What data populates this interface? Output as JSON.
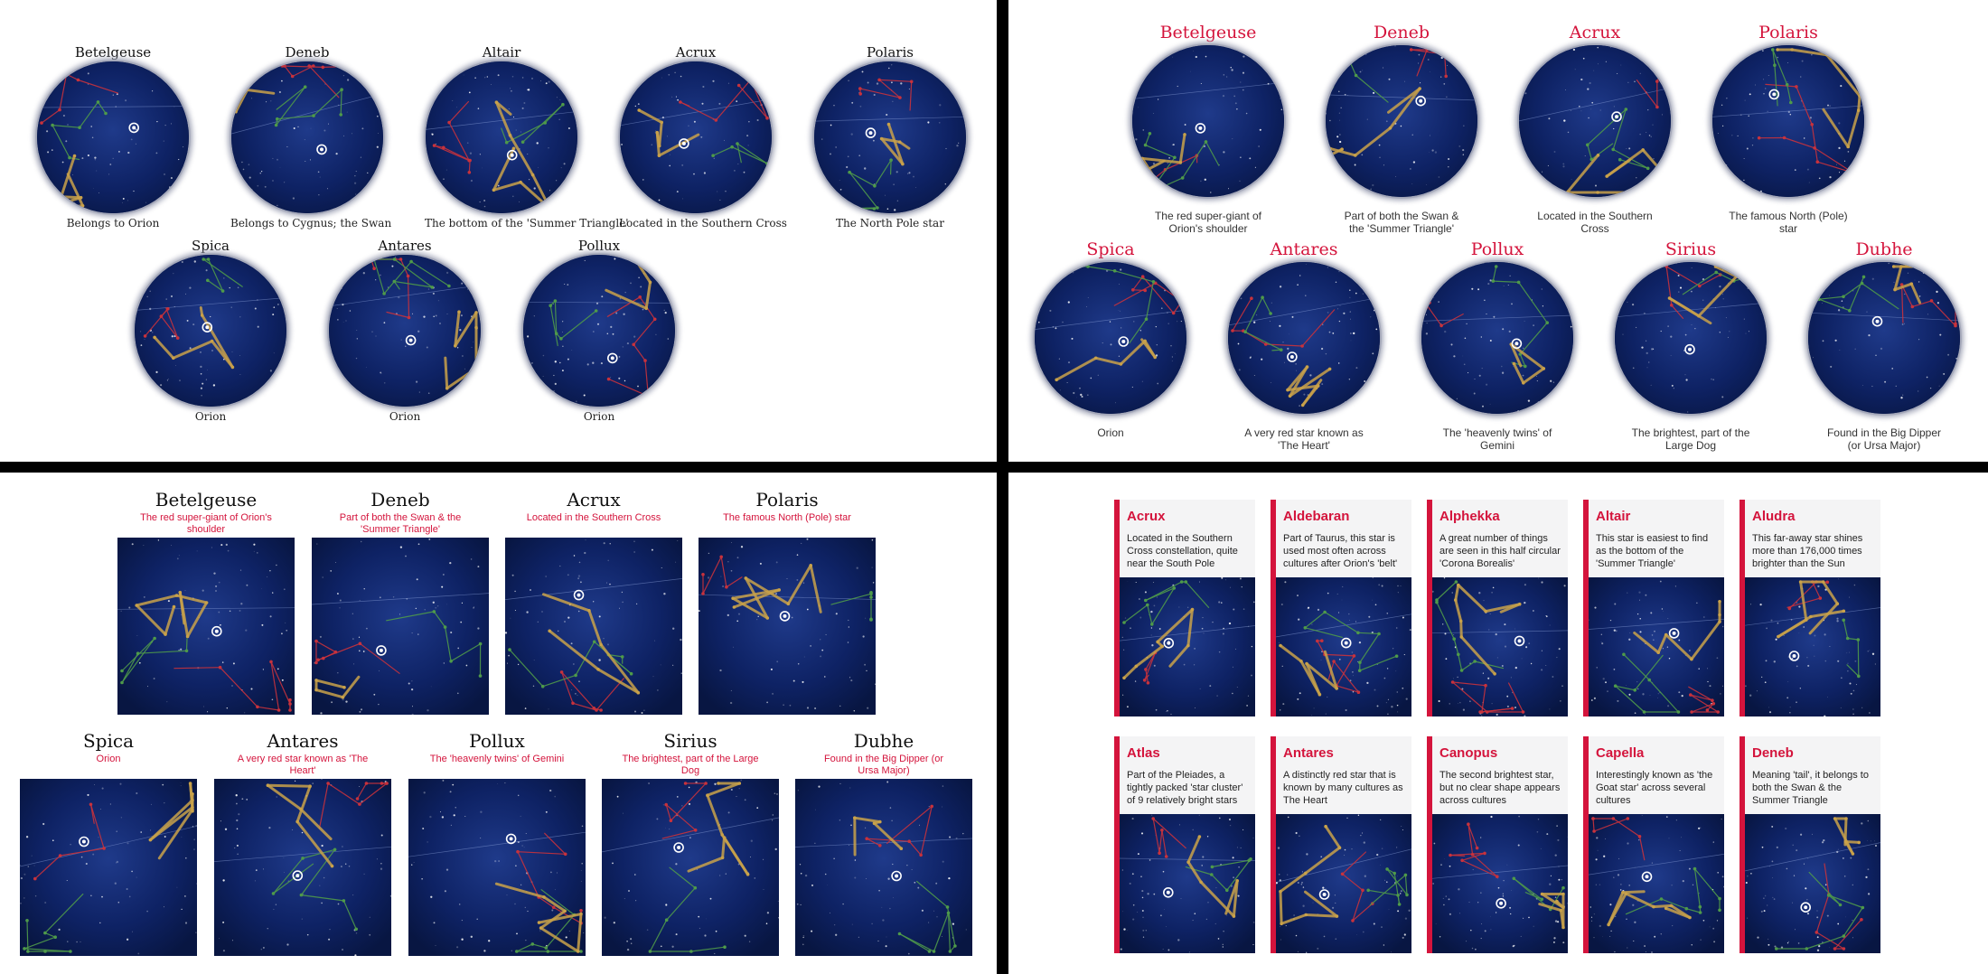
{
  "panel1": {
    "items": [
      {
        "name": "Betelgeuse",
        "caption": "Belongs to Orion"
      },
      {
        "name": "Deneb",
        "caption": "Belongs to Cygnus; the Swan"
      },
      {
        "name": "Altair",
        "caption": "The bottom of the 'Summer Triangle'"
      },
      {
        "name": "Acrux",
        "caption": "Located in the Southern Cross"
      },
      {
        "name": "Polaris",
        "caption": "The North Pole star"
      },
      {
        "name": "Spica",
        "caption": "Orion"
      },
      {
        "name": "Antares",
        "caption": "Orion"
      },
      {
        "name": "Pollux",
        "caption": "Orion"
      }
    ]
  },
  "panel2": {
    "items": [
      {
        "name": "Betelgeuse",
        "caption": "The red super-giant of Orion's shoulder"
      },
      {
        "name": "Deneb",
        "caption": "Part of both the Swan & the 'Summer Triangle'"
      },
      {
        "name": "Acrux",
        "caption": "Located in the Southern Cross"
      },
      {
        "name": "Polaris",
        "caption": "The famous North (Pole) star"
      },
      {
        "name": "Spica",
        "caption": "Orion"
      },
      {
        "name": "Antares",
        "caption": "A very red star known as 'The Heart'"
      },
      {
        "name": "Pollux",
        "caption": "The 'heavenly twins' of Gemini"
      },
      {
        "name": "Sirius",
        "caption": "The brightest, part of the Large Dog"
      },
      {
        "name": "Dubhe",
        "caption": "Found in the Big Dipper (or Ursa Major)"
      }
    ]
  },
  "panel3": {
    "items": [
      {
        "name": "Betelgeuse",
        "caption": "The red super-giant of Orion's shoulder"
      },
      {
        "name": "Deneb",
        "caption": "Part of both the Swan & the 'Summer Triangle'"
      },
      {
        "name": "Acrux",
        "caption": "Located in the Southern Cross"
      },
      {
        "name": "Polaris",
        "caption": "The famous North (Pole) star"
      },
      {
        "name": "Spica",
        "caption": "Orion"
      },
      {
        "name": "Antares",
        "caption": "A very red star known as 'The Heart'"
      },
      {
        "name": "Pollux",
        "caption": "The 'heavenly twins' of Gemini"
      },
      {
        "name": "Sirius",
        "caption": "The brightest, part of the Large Dog"
      },
      {
        "name": "Dubhe",
        "caption": "Found in the Big Dipper (or Ursa Major)"
      }
    ]
  },
  "panel4": {
    "cards": [
      {
        "name": "Acrux",
        "description": "Located in the Southern Cross constellation, quite near the South Pole"
      },
      {
        "name": "Aldebaran",
        "description": "Part of Taurus, this star is used most often across cultures after Orion's 'belt'"
      },
      {
        "name": "Alphekka",
        "description": "A great number of things are seen in this half circular 'Corona Borealis'"
      },
      {
        "name": "Altair",
        "description": "This star is easiest to find as the bottom of the 'Summer Triangle'"
      },
      {
        "name": "Aludra",
        "description": "This far-away star shines more than 176,000 times brighter than the Sun"
      },
      {
        "name": "Atlas",
        "description": "Part of the Pleiades, a tightly packed 'star cluster' of 9 relatively bright stars"
      },
      {
        "name": "Antares",
        "description": "A distinctly red star that is known by many cultures as The Heart"
      },
      {
        "name": "Canopus",
        "description": "The second brightest star, but no clear shape appears across cultures"
      },
      {
        "name": "Capella",
        "description": "Interestingly known as 'the Goat star' across several cultures"
      },
      {
        "name": "Deneb",
        "description": "Meaning 'tail', it belongs to both the Swan & the Summer Triangle"
      }
    ]
  },
  "colors": {
    "accent": "#d4143c",
    "sky": "#0a1a4e",
    "line_gold": "#c9a24a",
    "line_red": "#c8323c",
    "line_green": "#4f9a4a"
  }
}
